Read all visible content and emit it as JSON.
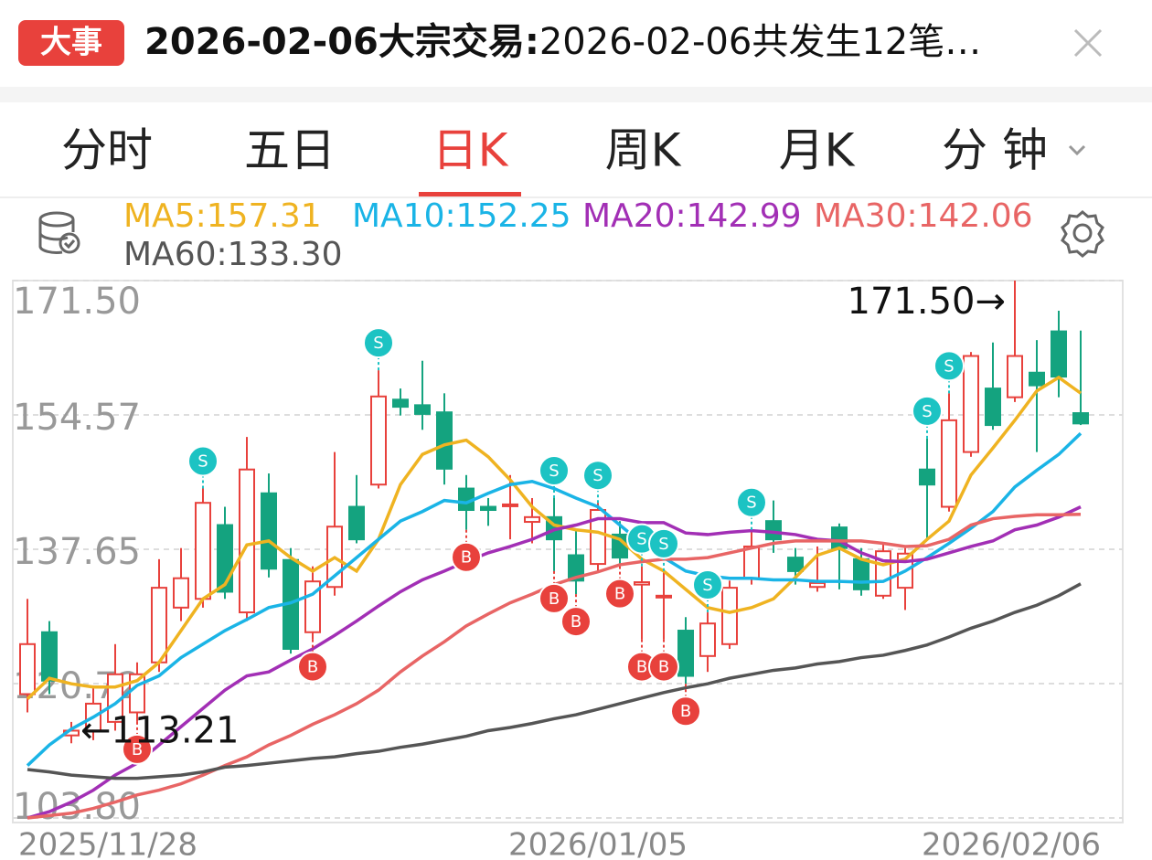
{
  "header": {
    "badge": "大事",
    "title_bold": "2026-02-06大宗交易:",
    "title_rest": "2026-02-06共发生12笔…"
  },
  "tabs": {
    "items": [
      "分时",
      "五日",
      "日K",
      "周K",
      "月K",
      "分 钟"
    ],
    "active": 2
  },
  "chart_data": {
    "type": "candlestick",
    "categories": [
      "2025/11/28",
      null,
      null,
      null,
      null,
      null,
      null,
      null,
      null,
      null,
      null,
      null,
      null,
      null,
      null,
      null,
      null,
      null,
      null,
      null,
      null,
      null,
      null,
      null,
      null,
      null,
      "2026/01/05",
      null,
      null,
      null,
      null,
      null,
      null,
      null,
      null,
      null,
      null,
      null,
      null,
      null,
      null,
      null,
      null,
      null,
      null,
      null,
      null,
      null,
      "2026/02/06"
    ],
    "open": [
      119.4,
      127.2,
      114.2,
      114.8,
      115.9,
      117.1,
      123.4,
      130.3,
      131.4,
      140.7,
      129.7,
      144.7,
      136.3,
      127.2,
      132.9,
      143.0,
      145.8,
      156.5,
      155.8,
      154.9,
      145.3,
      143.0,
      143.1,
      141.1,
      141.7,
      136.9,
      135.8,
      139.5,
      133.2,
      131.8,
      127.4,
      124.2,
      125.7,
      134.0,
      141.2,
      136.6,
      132.9,
      140.4,
      136.4,
      131.8,
      132.8,
      147.7,
      143.0,
      149.9,
      157.9,
      156.8,
      159.9,
      165.1,
      154.8
    ],
    "high": [
      131.4,
      128.6,
      115.9,
      120.5,
      125.7,
      123.4,
      136.4,
      137.8,
      145.3,
      143.0,
      151.8,
      147.2,
      137.8,
      135.5,
      149.9,
      147.0,
      160.2,
      157.9,
      161.4,
      157.3,
      147.0,
      144.1,
      147.0,
      144.1,
      144.1,
      140.1,
      143.5,
      141.2,
      135.5,
      134.9,
      129.1,
      129.7,
      133.7,
      140.1,
      143.8,
      137.8,
      138.0,
      140.9,
      137.8,
      138.4,
      137.8,
      151.6,
      157.3,
      162.5,
      163.7,
      171.5,
      164.0,
      167.7,
      165.2
    ],
    "low": [
      117.1,
      119.4,
      113.21,
      113.6,
      114.8,
      115.9,
      122.2,
      128.6,
      130.3,
      131.4,
      128.6,
      134.1,
      124.5,
      126.3,
      131.8,
      138.4,
      145.3,
      154.5,
      152.7,
      145.8,
      140.1,
      140.6,
      138.9,
      138.4,
      134.9,
      132.0,
      134.9,
      135.5,
      126.3,
      126.3,
      120.7,
      122.2,
      125.1,
      133.2,
      137.2,
      133.2,
      132.3,
      132.6,
      131.8,
      131.4,
      130.0,
      138.9,
      142.4,
      149.3,
      152.7,
      156.2,
      149.9,
      156.8,
      153.3
    ],
    "close": [
      125.7,
      121.1,
      114.8,
      118.2,
      121.9,
      121.9,
      132.8,
      134.0,
      143.5,
      132.3,
      147.7,
      135.2,
      125.1,
      133.6,
      140.5,
      138.9,
      156.9,
      155.6,
      154.7,
      147.8,
      142.6,
      142.6,
      143.3,
      141.7,
      138.9,
      133.7,
      142.6,
      136.6,
      133.5,
      131.8,
      121.7,
      128.3,
      132.8,
      138.0,
      138.9,
      134.9,
      133.4,
      137.8,
      132.6,
      137.4,
      137.1,
      145.8,
      153.9,
      162.0,
      153.3,
      162.0,
      158.3,
      159.4,
      153.5
    ],
    "up_color": "#e8413c",
    "down_color": "#14a37f",
    "series": [
      {
        "name": "MA5:157.31",
        "color": "#efb321",
        "values": [
          118.8,
          121.4,
          120.7,
          120.3,
          120.3,
          121.1,
          123.4,
          127.4,
          131.4,
          133.2,
          138.2,
          138.7,
          136.6,
          134.9,
          136.6,
          134.9,
          138.9,
          145.8,
          149.6,
          150.8,
          151.4,
          149.3,
          146.4,
          143.0,
          140.7,
          140.1,
          139.8,
          138.9,
          136.4,
          134.9,
          132.6,
          130.3,
          129.7,
          130.3,
          131.4,
          134.1,
          136.9,
          137.8,
          136.4,
          135.7,
          136.4,
          138.9,
          141.2,
          147.0,
          150.4,
          153.9,
          157.6,
          159.3,
          157.31
        ]
      },
      {
        "name": "MA10:152.25",
        "color": "#1ab4e6",
        "values": [
          110.4,
          113.0,
          115.0,
          116.5,
          118.2,
          120.5,
          121.7,
          124.0,
          125.7,
          127.4,
          128.8,
          130.3,
          130.9,
          132.0,
          134.3,
          136.6,
          138.9,
          141.2,
          142.4,
          143.8,
          143.5,
          144.7,
          145.8,
          146.2,
          145.3,
          144.1,
          143.0,
          140.7,
          138.4,
          136.6,
          134.9,
          134.3,
          134.0,
          134.0,
          133.8,
          133.8,
          133.6,
          133.6,
          133.5,
          133.6,
          134.9,
          136.6,
          138.4,
          140.3,
          142.4,
          145.5,
          147.6,
          149.6,
          152.25
        ]
      },
      {
        "name": "MA20:142.99",
        "color": "#a22fb5",
        "values": [
          103.8,
          104.6,
          105.8,
          107.3,
          109.2,
          110.7,
          113.0,
          115.3,
          117.6,
          119.9,
          121.7,
          122.2,
          123.7,
          125.1,
          126.8,
          128.6,
          130.5,
          132.3,
          133.8,
          134.9,
          136.1,
          137.2,
          138.0,
          138.9,
          140.1,
          140.7,
          141.5,
          141.5,
          141.0,
          141.0,
          139.7,
          139.5,
          139.8,
          140.0,
          139.8,
          139.5,
          138.9,
          138.7,
          137.2,
          136.2,
          136.1,
          136.4,
          137.2,
          138.0,
          138.7,
          140.1,
          140.7,
          141.7,
          142.99
        ]
      },
      {
        "name": "MA30:142.06",
        "color": "#e86565",
        "values": [
          103.8,
          104.1,
          104.4,
          105.0,
          105.8,
          106.7,
          107.3,
          108.1,
          109.2,
          110.4,
          111.5,
          113.0,
          114.2,
          115.6,
          116.8,
          118.2,
          119.9,
          122.2,
          124.2,
          126.0,
          128.0,
          129.5,
          130.9,
          132.0,
          133.2,
          134.1,
          134.8,
          135.7,
          136.1,
          136.4,
          136.4,
          136.6,
          137.2,
          137.8,
          138.4,
          138.7,
          138.7,
          138.7,
          138.7,
          138.4,
          138.0,
          138.1,
          138.9,
          140.7,
          141.5,
          141.8,
          142.0,
          142.0,
          142.06
        ]
      },
      {
        "name": "MA60:133.30",
        "color": "#555555",
        "values": [
          109.9,
          109.6,
          109.2,
          109.0,
          108.8,
          108.8,
          109.0,
          109.2,
          109.6,
          110.2,
          110.4,
          110.7,
          111.0,
          111.3,
          111.5,
          111.9,
          112.2,
          112.7,
          113.1,
          113.6,
          114.1,
          114.8,
          115.2,
          115.7,
          116.3,
          116.8,
          117.5,
          118.2,
          118.9,
          119.6,
          120.2,
          120.7,
          121.4,
          121.9,
          122.4,
          122.7,
          123.2,
          123.5,
          124.0,
          124.3,
          124.9,
          125.6,
          126.6,
          127.7,
          128.6,
          129.7,
          130.6,
          131.8,
          133.3
        ]
      }
    ],
    "signals": [
      {
        "label": "S",
        "index": 8
      },
      {
        "label": "S",
        "index": 16
      },
      {
        "label": "S",
        "index": 24
      },
      {
        "label": "S",
        "index": 26
      },
      {
        "label": "S",
        "index": 28
      },
      {
        "label": "S",
        "index": 29
      },
      {
        "label": "S",
        "index": 31
      },
      {
        "label": "S",
        "index": 33
      },
      {
        "label": "S",
        "index": 41
      },
      {
        "label": "S",
        "index": 42
      },
      {
        "label": "B",
        "index": 5
      },
      {
        "label": "B",
        "index": 13
      },
      {
        "label": "B",
        "index": 20
      },
      {
        "label": "B",
        "index": 24
      },
      {
        "label": "B",
        "index": 25
      },
      {
        "label": "B",
        "index": 27
      },
      {
        "label": "B",
        "index": 28
      },
      {
        "label": "B",
        "index": 29
      },
      {
        "label": "B",
        "index": 30
      }
    ],
    "annotations": [
      {
        "label": "171.50→",
        "value": 171.5
      },
      {
        "label": "←113.21",
        "value": 113.21
      }
    ],
    "ylim": [
      103.8,
      171.5
    ],
    "yticks": [
      {
        "value": 103.8,
        "label": "103.80"
      },
      120.72,
      137.65,
      154.57,
      {
        "value": 171.5,
        "label": "171.50"
      }
    ],
    "grid": true
  }
}
